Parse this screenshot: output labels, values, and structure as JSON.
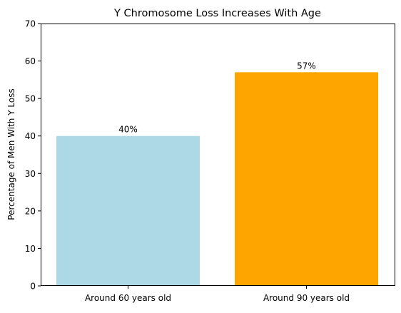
{
  "chart_data": {
    "type": "bar",
    "title": "Y Chromosome Loss Increases With Age",
    "xlabel": "",
    "ylabel": "Percentage of Men With Y Loss",
    "categories": [
      "Around 60 years old",
      "Around 90 years old"
    ],
    "values": [
      40,
      57
    ],
    "data_labels": [
      "40%",
      "57%"
    ],
    "colors": [
      "#add8e6",
      "#ffa500"
    ],
    "ylim": [
      0,
      70
    ],
    "yticks": [
      0,
      10,
      20,
      30,
      40,
      50,
      60,
      70
    ],
    "grid": false,
    "legend": "none"
  }
}
